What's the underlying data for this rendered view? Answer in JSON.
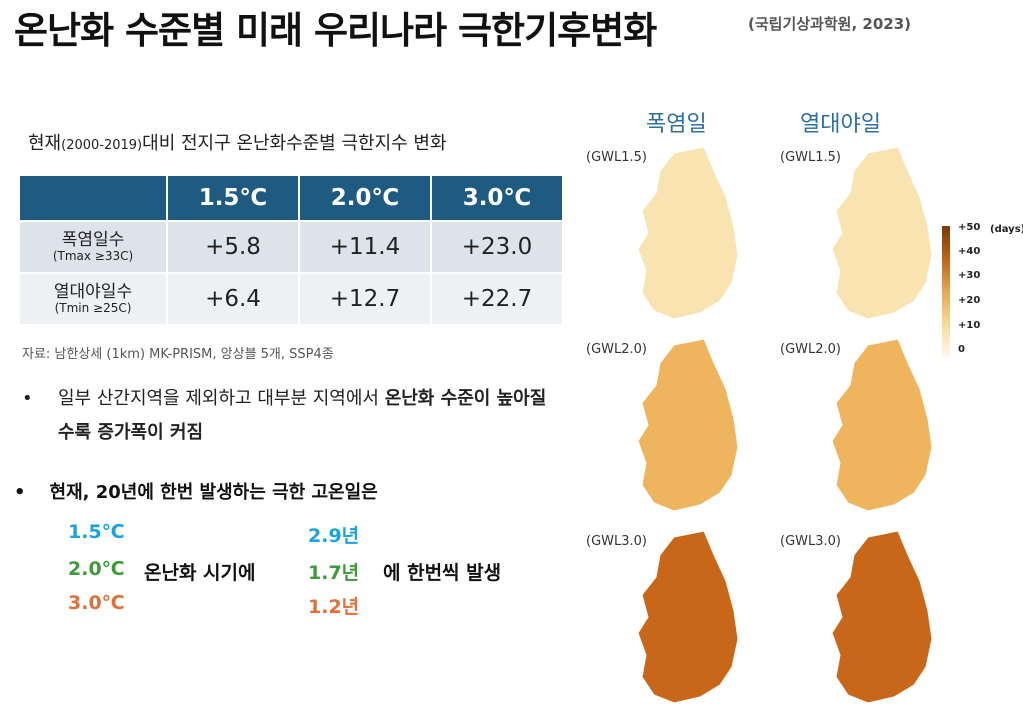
{
  "header": {
    "title": "온난화 수준별 미래 우리나라 극한기후변화",
    "source": "(국립기상과학원, 2023)"
  },
  "table": {
    "caption_prefix": "현재",
    "caption_period": "(2000-2019)",
    "caption_suffix": "대비 전지구 온난화수준별 극한지수 변화",
    "columns": [
      "1.5℃",
      "2.0℃",
      "3.0℃"
    ],
    "rows": [
      {
        "label": "폭염일수",
        "sub": "(Tmax ≥33C)",
        "values": [
          "+5.8",
          "+11.4",
          "+23.0"
        ]
      },
      {
        "label": "열대야일수",
        "sub": "(Tmin ≥25C)",
        "values": [
          "+6.4",
          "+12.7",
          "+22.7"
        ]
      }
    ]
  },
  "note": "자료: 남한상세 (1km) MK-PRISM, 앙상블 5개, SSP4종",
  "bullet1": {
    "dot": "•",
    "normal": "일부 산간지역을 제외하고 대부분 지역에서 ",
    "bold": "온난화 수준이 높아질수록 증가폭이 커짐"
  },
  "bullet2": {
    "dot": "•",
    "text": "현재, 20년에 한번 발생하는 극한 고온일은"
  },
  "occurrence": {
    "rows": [
      {
        "temp": "1.5℃",
        "years": "2.9년",
        "color": "#1aa3d6"
      },
      {
        "temp": "2.0℃",
        "years": "1.7년",
        "color": "#3f9a3c"
      },
      {
        "temp": "3.0℃",
        "years": "1.2년",
        "color": "#e0703a"
      }
    ],
    "phrase_mid": "온난화 시기에",
    "phrase_end": "에 한번씩 발생"
  },
  "maps": {
    "col_titles": [
      "폭염일",
      "열대야일"
    ],
    "gwl_labels": [
      "(GWL1.5)",
      "(GWL2.0)",
      "(GWL3.0)"
    ],
    "legend": {
      "ticks": [
        "+50",
        "+40",
        "+30",
        "+20",
        "+10",
        "0"
      ],
      "unit": "(days)"
    },
    "colors": {
      "light": "#f9e3b0",
      "mid": "#efb45e",
      "dark": "#c8661a"
    }
  }
}
